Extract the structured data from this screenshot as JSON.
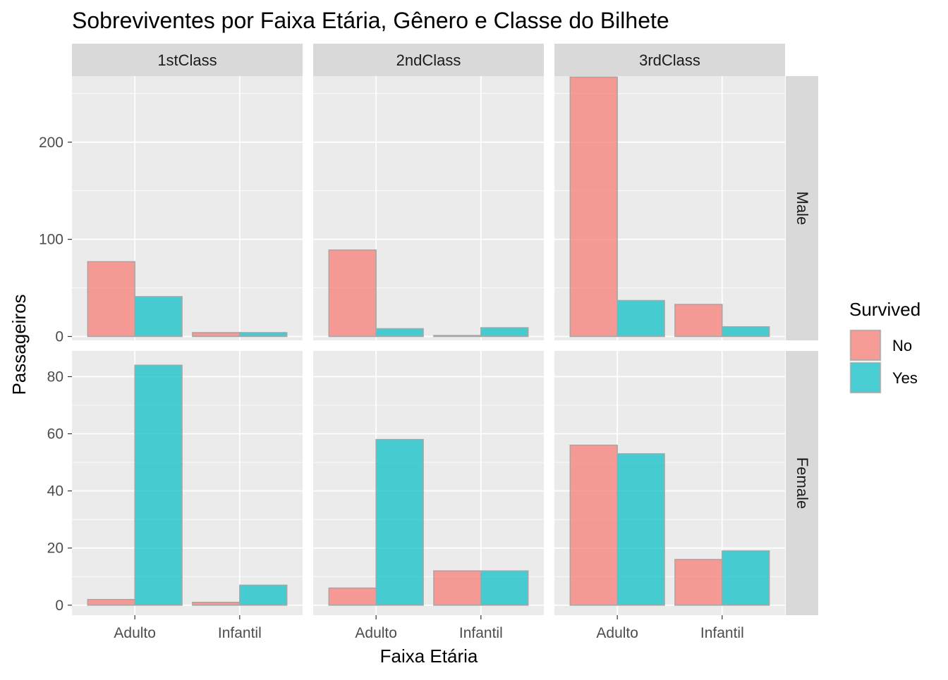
{
  "chart_data": {
    "type": "bar",
    "title": "Sobreviventes por Faixa Etária, Gênero e Classe do Bilhete",
    "xlabel": "Faixa Etária",
    "ylabel": "Passageiros",
    "categories": [
      "Adulto",
      "Infantil"
    ],
    "col_facets": [
      "1stClass",
      "2ndClass",
      "3rdClass"
    ],
    "row_facets": [
      {
        "label": "Male",
        "ylim": [
          -4,
          268
        ],
        "yticks": [
          0,
          100,
          200
        ],
        "ytick_labels": [
          "0",
          "100",
          "200"
        ],
        "minor_ticks": [
          50,
          150,
          250
        ]
      },
      {
        "label": "Female",
        "ylim": [
          -3.5,
          89
        ],
        "yticks": [
          0,
          20,
          40,
          60,
          80
        ],
        "ytick_labels": [
          "0",
          "20",
          "40",
          "60",
          "80"
        ],
        "minor_ticks": [
          10,
          30,
          50,
          70
        ]
      }
    ],
    "legend": {
      "title": "Survived",
      "position": "right",
      "entries": [
        {
          "name": "No",
          "color": "#F8766D"
        },
        {
          "name": "Yes",
          "color": "#00BFC4"
        }
      ]
    },
    "series_colors": {
      "No": "#F8766D",
      "Yes": "#00BFC4"
    },
    "grid": true,
    "data": [
      {
        "row": "Male",
        "col": "1stClass",
        "category": "Adulto",
        "No": 77,
        "Yes": 41
      },
      {
        "row": "Male",
        "col": "1stClass",
        "category": "Infantil",
        "No": 4,
        "Yes": 4
      },
      {
        "row": "Male",
        "col": "2ndClass",
        "category": "Adulto",
        "No": 89,
        "Yes": 8
      },
      {
        "row": "Male",
        "col": "2ndClass",
        "category": "Infantil",
        "No": 1,
        "Yes": 9
      },
      {
        "row": "Male",
        "col": "3rdClass",
        "category": "Adulto",
        "No": 267,
        "Yes": 37
      },
      {
        "row": "Male",
        "col": "3rdClass",
        "category": "Infantil",
        "No": 33,
        "Yes": 10
      },
      {
        "row": "Female",
        "col": "1stClass",
        "category": "Adulto",
        "No": 2,
        "Yes": 84
      },
      {
        "row": "Female",
        "col": "1stClass",
        "category": "Infantil",
        "No": 1,
        "Yes": 7
      },
      {
        "row": "Female",
        "col": "2ndClass",
        "category": "Adulto",
        "No": 6,
        "Yes": 58
      },
      {
        "row": "Female",
        "col": "2ndClass",
        "category": "Infantil",
        "No": 12,
        "Yes": 12
      },
      {
        "row": "Female",
        "col": "3rdClass",
        "category": "Adulto",
        "No": 56,
        "Yes": 53
      },
      {
        "row": "Female",
        "col": "3rdClass",
        "category": "Infantil",
        "No": 16,
        "Yes": 19
      }
    ]
  }
}
